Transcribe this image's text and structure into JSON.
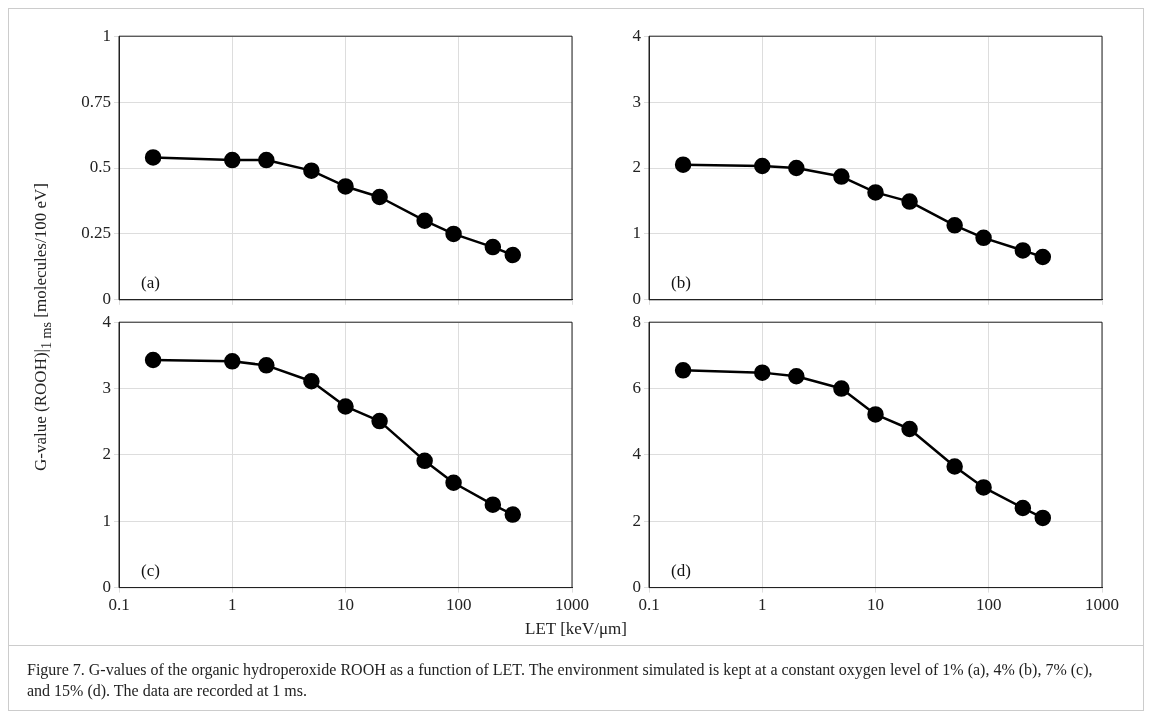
{
  "chart_data": [
    {
      "type": "line",
      "ylabel": "G-value (ROOH)|$_{1 ms}$ [molecules/100 eV]",
      "x": [
        0.2,
        1,
        2,
        5,
        10,
        20,
        50,
        90,
        200,
        300
      ],
      "log": "x",
      "xlim": [
        0.1,
        1000
      ],
      "xticks": [
        0.1,
        1,
        10,
        100,
        1000
      ],
      "ylim": [
        0,
        1
      ],
      "yticks": [
        0,
        0.25,
        0.5,
        0.75,
        1
      ],
      "grid": true,
      "marker": "circle",
      "line_style": "solid",
      "tick_labels": "y",
      "annotations": [
        "(a)"
      ],
      "series": [
        {
          "color": "#000000",
          "values": [
            0.54,
            0.53,
            0.53,
            0.49,
            0.43,
            0.39,
            0.3,
            0.25,
            0.2,
            0.17
          ]
        }
      ]
    },
    {
      "type": "line",
      "x": [
        0.2,
        1,
        2,
        5,
        10,
        20,
        50,
        90,
        200,
        300
      ],
      "log": "x",
      "xlim": [
        0.1,
        1000
      ],
      "xticks": [
        0.1,
        1,
        10,
        100,
        1000
      ],
      "ylim": [
        0,
        4
      ],
      "yticks": [
        0,
        1,
        2,
        3,
        4
      ],
      "grid": true,
      "marker": "circle",
      "line_style": "solid",
      "tick_labels": "y",
      "annotations": [
        "(b)"
      ],
      "series": [
        {
          "color": "#000000",
          "values": [
            2.05,
            2.03,
            2.0,
            1.87,
            1.63,
            1.49,
            1.13,
            0.94,
            0.75,
            0.65
          ]
        }
      ]
    },
    {
      "type": "line",
      "xlabel": "LET [keV/μm]",
      "x": [
        0.2,
        1,
        2,
        5,
        10,
        20,
        50,
        90,
        200,
        300
      ],
      "log": "x",
      "xlim": [
        0.1,
        1000
      ],
      "xticks": [
        0.1,
        1,
        10,
        100,
        1000
      ],
      "ylim": [
        0,
        4
      ],
      "yticks": [
        0,
        1,
        2,
        3,
        4
      ],
      "grid": true,
      "marker": "circle",
      "line_style": "solid",
      "annotations": [
        "(c)"
      ],
      "series": [
        {
          "color": "#000000",
          "values": [
            3.43,
            3.41,
            3.35,
            3.11,
            2.73,
            2.51,
            1.91,
            1.58,
            1.25,
            1.1
          ]
        }
      ]
    },
    {
      "type": "line",
      "x": [
        0.2,
        1,
        2,
        5,
        10,
        20,
        50,
        90,
        200,
        300
      ],
      "log": "x",
      "xlim": [
        0.1,
        1000
      ],
      "xticks": [
        0.1,
        1,
        10,
        100,
        1000
      ],
      "ylim": [
        0,
        8
      ],
      "yticks": [
        0,
        2,
        4,
        6,
        8
      ],
      "grid": true,
      "marker": "circle",
      "line_style": "solid",
      "annotations": [
        "(d)",
        "Figure 7. G-values of the organic hydroperoxide ROOH as a function of LET. The environment simulated is kept at a constant oxygen level of 1% (a), 4% (b), 7% (c), and 15% (d). The data are recorded at 1 ms."
      ],
      "series": [
        {
          "color": "#000000",
          "values": [
            6.55,
            6.48,
            6.37,
            6.0,
            5.22,
            4.78,
            3.65,
            3.02,
            2.4,
            2.1
          ]
        }
      ]
    }
  ]
}
